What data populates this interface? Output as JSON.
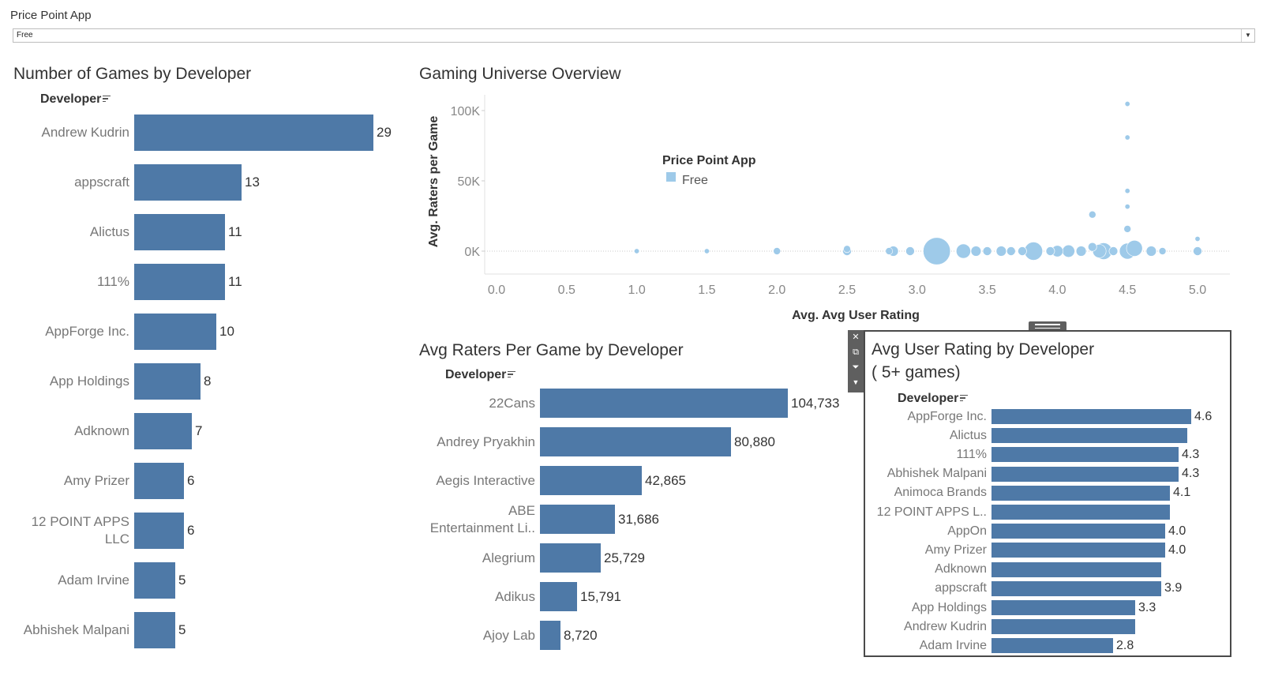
{
  "filter": {
    "title": "Price Point App",
    "selected": "Free"
  },
  "games_by_dev": {
    "title": "Number of Games by Developer",
    "header": "Developer",
    "items": [
      {
        "label": "Andrew Kudrin",
        "value": 29,
        "value_label": "29"
      },
      {
        "label": "appscraft",
        "value": 13,
        "value_label": "13"
      },
      {
        "label": "Alictus",
        "value": 11,
        "value_label": "11"
      },
      {
        "label": "111%",
        "value": 11,
        "value_label": "11"
      },
      {
        "label": "AppForge Inc.",
        "value": 10,
        "value_label": "10"
      },
      {
        "label": "App Holdings",
        "value": 8,
        "value_label": "8"
      },
      {
        "label": "Adknown",
        "value": 7,
        "value_label": "7"
      },
      {
        "label": "Amy Prizer",
        "value": 6,
        "value_label": "6"
      },
      {
        "label": "12 POINT APPS\nLLC",
        "value": 6,
        "value_label": "6"
      },
      {
        "label": "Adam Irvine",
        "value": 5,
        "value_label": "5"
      },
      {
        "label": "Abhishek Malpani",
        "value": 5,
        "value_label": "5"
      }
    ]
  },
  "overview": {
    "title": "Gaming Universe Overview",
    "legend_title": "Price Point App",
    "legend_item": "Free",
    "xlabel": "Avg. Avg User Rating",
    "ylabel": "Avg. Raters per Game",
    "x_ticks": [
      "0.0",
      "0.5",
      "1.0",
      "1.5",
      "2.0",
      "2.5",
      "3.0",
      "3.5",
      "4.0",
      "4.5",
      "5.0"
    ],
    "y_ticks": [
      "100K",
      "50K",
      "0K"
    ]
  },
  "raters_by_dev": {
    "title": "Avg Raters Per Game by Developer",
    "header": "Developer",
    "items": [
      {
        "label": "22Cans",
        "value": 104733,
        "value_label": "104,733"
      },
      {
        "label": "Andrey Pryakhin",
        "value": 80880,
        "value_label": "80,880"
      },
      {
        "label": "Aegis Interactive",
        "value": 42865,
        "value_label": "42,865"
      },
      {
        "label": "ABE\nEntertainment Li..",
        "value": 31686,
        "value_label": "31,686"
      },
      {
        "label": "Alegrium",
        "value": 25729,
        "value_label": "25,729"
      },
      {
        "label": "Adikus",
        "value": 15791,
        "value_label": "15,791"
      },
      {
        "label": "Ajoy Lab",
        "value": 8720,
        "value_label": "8,720"
      }
    ]
  },
  "rating_by_dev": {
    "title": "Avg User Rating by Developer",
    "subtitle": "( 5+ games)",
    "header": "Developer",
    "items": [
      {
        "label": "AppForge Inc.",
        "value": 4.6,
        "value_label": "4.6"
      },
      {
        "label": "Alictus",
        "value": 4.5,
        "value_label": ""
      },
      {
        "label": "111%",
        "value": 4.3,
        "value_label": "4.3"
      },
      {
        "label": "Abhishek Malpani",
        "value": 4.3,
        "value_label": "4.3"
      },
      {
        "label": "Animoca Brands",
        "value": 4.1,
        "value_label": "4.1"
      },
      {
        "label": "12 POINT APPS L..",
        "value": 4.1,
        "value_label": ""
      },
      {
        "label": "AppOn",
        "value": 4.0,
        "value_label": "4.0"
      },
      {
        "label": "Amy Prizer",
        "value": 4.0,
        "value_label": "4.0"
      },
      {
        "label": "Adknown",
        "value": 3.9,
        "value_label": ""
      },
      {
        "label": "appscraft",
        "value": 3.9,
        "value_label": "3.9"
      },
      {
        "label": "App Holdings",
        "value": 3.3,
        "value_label": "3.3"
      },
      {
        "label": "Andrew Kudrin",
        "value": 3.3,
        "value_label": ""
      },
      {
        "label": "Adam Irvine",
        "value": 2.8,
        "value_label": "2.8"
      }
    ]
  },
  "toolbar": {
    "icons": [
      "close-icon",
      "popout-icon",
      "filter-icon",
      "more-icon"
    ]
  },
  "colors": {
    "bar": "#4e79a7",
    "bubble": "#9ecae9",
    "panel_border": "#4a4a4a"
  },
  "chart_data": [
    {
      "type": "bar",
      "orientation": "horizontal",
      "title": "Number of Games by Developer",
      "ylabel": "Developer",
      "categories": [
        "Andrew Kudrin",
        "appscraft",
        "Alictus",
        "111%",
        "AppForge Inc.",
        "App Holdings",
        "Adknown",
        "Amy Prizer",
        "12 POINT APPS LLC",
        "Adam Irvine",
        "Abhishek Malpani"
      ],
      "values": [
        29,
        13,
        11,
        11,
        10,
        8,
        7,
        6,
        6,
        5,
        5
      ]
    },
    {
      "type": "scatter",
      "title": "Gaming Universe Overview",
      "xlabel": "Avg. Avg User Rating",
      "ylabel": "Avg. Raters per Game",
      "xlim": [
        0,
        5
      ],
      "ylim": [
        0,
        105000
      ],
      "legend": {
        "title": "Price Point App",
        "items": [
          "Free"
        ],
        "placement": "top-left"
      },
      "grid": false,
      "series": [
        {
          "name": "Free",
          "points": [
            {
              "x": 1.0,
              "y": 0,
              "size": 1
            },
            {
              "x": 1.5,
              "y": 0,
              "size": 1
            },
            {
              "x": 2.0,
              "y": 0,
              "size": 2
            },
            {
              "x": 2.5,
              "y": 0,
              "size": 3
            },
            {
              "x": 2.5,
              "y": 1500,
              "size": 2
            },
            {
              "x": 2.8,
              "y": 0,
              "size": 2
            },
            {
              "x": 2.83,
              "y": 0,
              "size": 4
            },
            {
              "x": 2.95,
              "y": 0,
              "size": 3
            },
            {
              "x": 3.14,
              "y": 0,
              "size": 29
            },
            {
              "x": 3.33,
              "y": 0,
              "size": 8
            },
            {
              "x": 3.42,
              "y": 0,
              "size": 4
            },
            {
              "x": 3.5,
              "y": 0,
              "size": 3
            },
            {
              "x": 3.6,
              "y": 0,
              "size": 4
            },
            {
              "x": 3.67,
              "y": 0,
              "size": 3
            },
            {
              "x": 3.75,
              "y": 0,
              "size": 3
            },
            {
              "x": 3.83,
              "y": 0,
              "size": 13
            },
            {
              "x": 3.95,
              "y": 0,
              "size": 3
            },
            {
              "x": 4.0,
              "y": 0,
              "size": 5
            },
            {
              "x": 4.08,
              "y": 0,
              "size": 6
            },
            {
              "x": 4.17,
              "y": 0,
              "size": 4
            },
            {
              "x": 4.25,
              "y": 3000,
              "size": 3
            },
            {
              "x": 4.25,
              "y": 26000,
              "size": 2
            },
            {
              "x": 4.3,
              "y": 0,
              "size": 7
            },
            {
              "x": 4.33,
              "y": 0,
              "size": 11
            },
            {
              "x": 4.4,
              "y": 0,
              "size": 3
            },
            {
              "x": 4.5,
              "y": 0,
              "size": 10
            },
            {
              "x": 4.5,
              "y": 15791,
              "size": 2
            },
            {
              "x": 4.5,
              "y": 31686,
              "size": 1
            },
            {
              "x": 4.5,
              "y": 42865,
              "size": 1
            },
            {
              "x": 4.5,
              "y": 80880,
              "size": 1
            },
            {
              "x": 4.5,
              "y": 104733,
              "size": 1
            },
            {
              "x": 4.55,
              "y": 2000,
              "size": 10
            },
            {
              "x": 4.67,
              "y": 0,
              "size": 4
            },
            {
              "x": 4.75,
              "y": 0,
              "size": 2
            },
            {
              "x": 5.0,
              "y": 0,
              "size": 3
            },
            {
              "x": 5.0,
              "y": 8720,
              "size": 1
            }
          ]
        }
      ]
    },
    {
      "type": "bar",
      "orientation": "horizontal",
      "title": "Avg Raters Per Game by Developer",
      "ylabel": "Developer",
      "categories": [
        "22Cans",
        "Andrey Pryakhin",
        "Aegis Interactive",
        "ABE Entertainment Li..",
        "Alegrium",
        "Adikus",
        "Ajoy Lab"
      ],
      "values": [
        104733,
        80880,
        42865,
        31686,
        25729,
        15791,
        8720
      ]
    },
    {
      "type": "bar",
      "orientation": "horizontal",
      "title": "Avg User Rating by Developer ( 5+ games)",
      "ylabel": "Developer",
      "categories": [
        "AppForge Inc.",
        "Alictus",
        "111%",
        "Abhishek Malpani",
        "Animoca Brands",
        "12 POINT APPS L..",
        "AppOn",
        "Amy Prizer",
        "Adknown",
        "appscraft",
        "App Holdings",
        "Andrew Kudrin",
        "Adam Irvine"
      ],
      "values": [
        4.6,
        4.5,
        4.3,
        4.3,
        4.1,
        4.1,
        4.0,
        4.0,
        3.9,
        3.9,
        3.3,
        3.3,
        2.8
      ]
    }
  ]
}
